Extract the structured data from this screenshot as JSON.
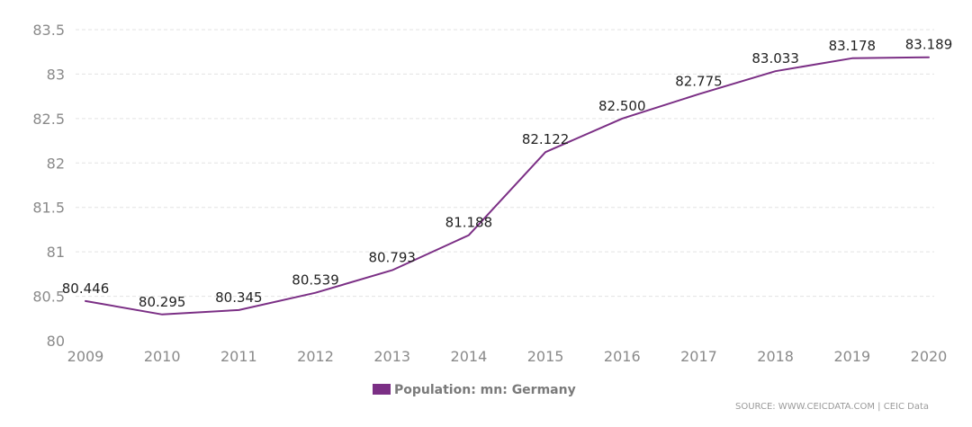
{
  "chart_data": {
    "type": "line",
    "categories": [
      "2009",
      "2010",
      "2011",
      "2012",
      "2013",
      "2014",
      "2015",
      "2016",
      "2017",
      "2018",
      "2019",
      "2020"
    ],
    "series": [
      {
        "name": "Population: mn: Germany",
        "values": [
          80.446,
          80.295,
          80.345,
          80.539,
          80.793,
          81.188,
          82.122,
          82.5,
          82.775,
          83.033,
          83.178,
          83.189
        ],
        "labels": [
          "80.446",
          "80.295",
          "80.345",
          "80.539",
          "80.793",
          "81.188",
          "82.122",
          "82.500",
          "82.775",
          "83.033",
          "83.178",
          "83.189"
        ]
      }
    ],
    "yticks": [
      "80",
      "80.5",
      "81",
      "81.5",
      "82",
      "82.5",
      "83",
      "83.5"
    ],
    "ylim": [
      80,
      83.5
    ],
    "grid": true,
    "legend_position": "bottom-center",
    "colors": {
      "line": "#7b2f85",
      "legend_swatch": "#7b2f85"
    },
    "title": "",
    "xlabel": "",
    "ylabel": ""
  },
  "source": "SOURCE: WWW.CEICDATA.COM | CEIC Data"
}
